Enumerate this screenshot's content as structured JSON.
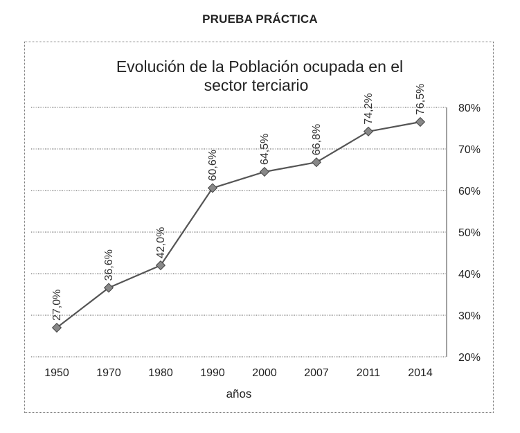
{
  "page": {
    "heading": "PRUEBA PRÁCTICA"
  },
  "chart_data": {
    "type": "line",
    "title": "Evolución de la Población ocupada en el sector terciario",
    "title_lines": [
      "Evolución de la Población ocupada en el",
      "sector terciario"
    ],
    "xlabel": "años",
    "ylabel": "",
    "categories": [
      "1950",
      "1970",
      "1980",
      "1990",
      "2000",
      "2007",
      "2011",
      "2014"
    ],
    "series": [
      {
        "values": [
          27.0,
          36.6,
          42.0,
          60.6,
          64.5,
          66.8,
          74.2,
          76.5
        ],
        "data_labels": [
          "27,0%",
          "36,6%",
          "42,0%",
          "60,6%",
          "64,5%",
          "66,8%",
          "74,2%",
          "76,5%"
        ]
      }
    ],
    "ylim": [
      20,
      80
    ],
    "y_ticks": [
      20,
      30,
      40,
      50,
      60,
      70,
      80
    ],
    "y_tick_labels": [
      "20%",
      "30%",
      "40%",
      "50%",
      "60%",
      "70%",
      "80%"
    ],
    "y_axis_side": "right",
    "grid": true,
    "colors": {
      "line": "#555555",
      "marker": "#888888",
      "grid": "#555555"
    }
  }
}
